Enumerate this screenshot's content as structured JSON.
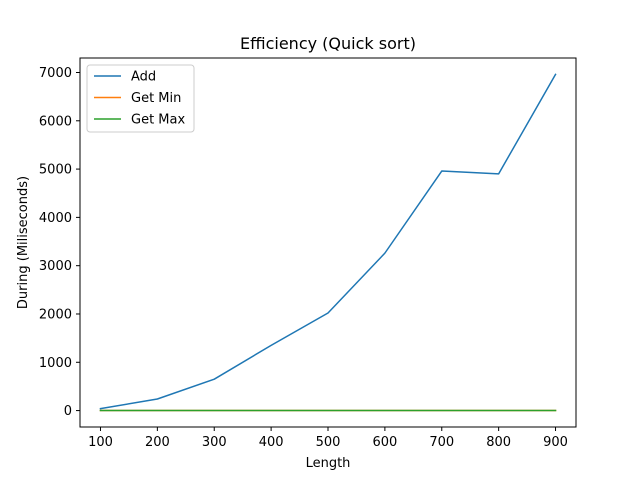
{
  "chart_data": {
    "type": "line",
    "title": "Efficiency (Quick sort)",
    "xlabel": "Length",
    "ylabel": "During (Miliseconds)",
    "x": [
      100,
      200,
      300,
      400,
      500,
      600,
      700,
      800,
      900
    ],
    "xticks": [
      100,
      200,
      300,
      400,
      500,
      600,
      700,
      800,
      900
    ],
    "yticks": [
      0,
      1000,
      2000,
      3000,
      4000,
      5000,
      6000,
      7000
    ],
    "xlim": [
      64,
      936
    ],
    "ylim": [
      -340,
      7300
    ],
    "grid": false,
    "legend_position": "top-left",
    "series": [
      {
        "name": "Add",
        "color": "#1f77b4",
        "values": [
          40,
          240,
          650,
          1350,
          2020,
          3260,
          4960,
          4900,
          6960
        ]
      },
      {
        "name": "Get Min",
        "color": "#ff7f0e",
        "values": [
          1,
          1,
          1,
          1,
          1,
          1,
          1,
          1,
          1
        ]
      },
      {
        "name": "Get Max",
        "color": "#2ca02c",
        "values": [
          1,
          1,
          1,
          1,
          1,
          1,
          1,
          1,
          1
        ]
      }
    ]
  }
}
